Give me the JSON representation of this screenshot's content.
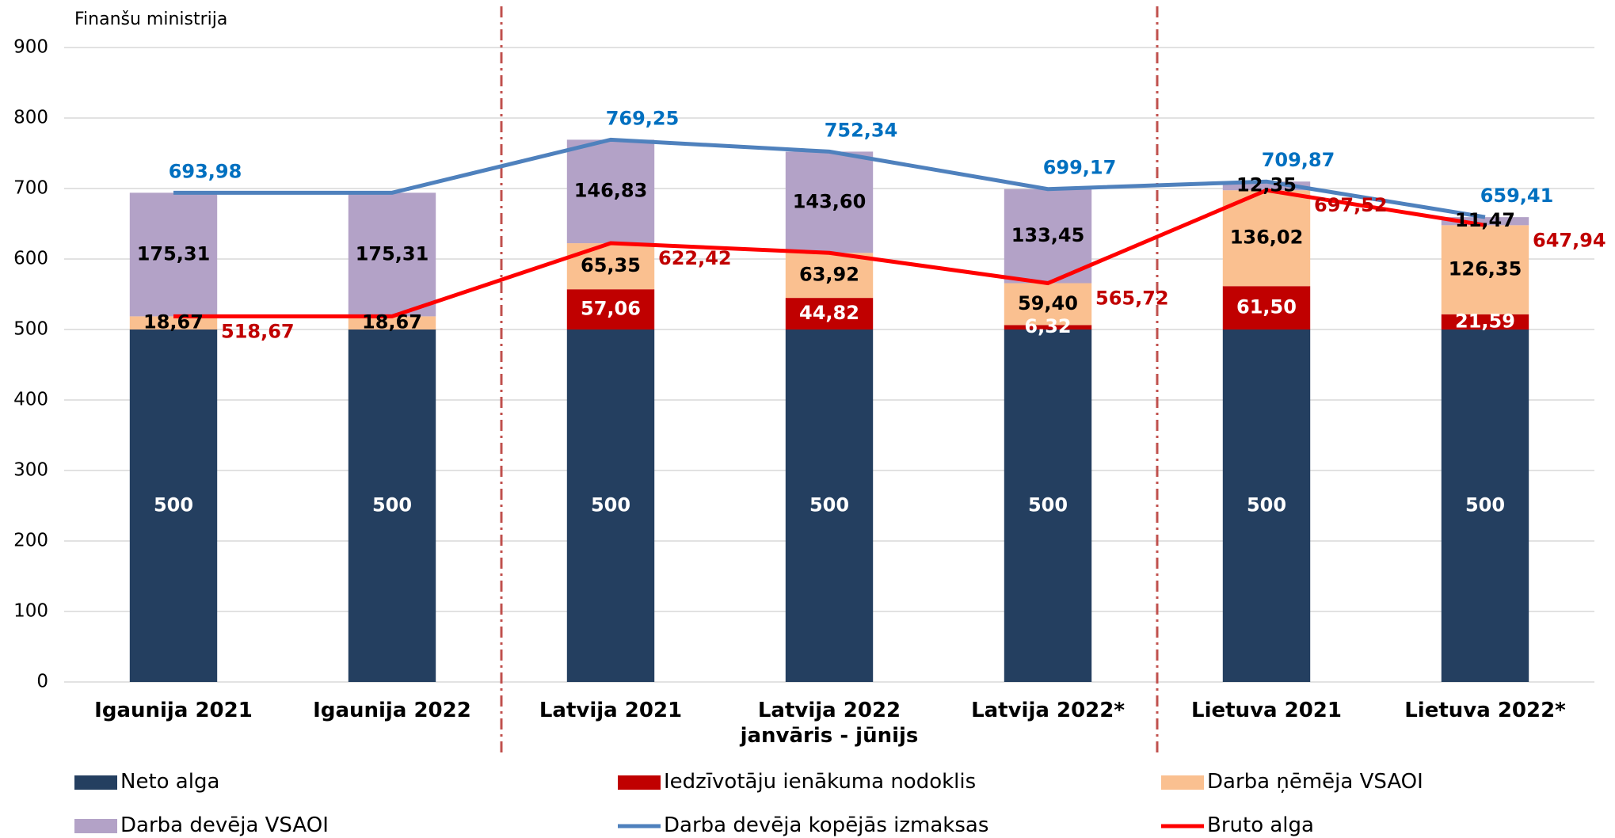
{
  "logo": "Finanšu ministrija",
  "chart_data": {
    "type": "stacked_bar_line",
    "categories": [
      "Igaunija  2021",
      "Igaunija 2022",
      "Latvija 2021",
      "Latvija 2022\njanvāris - jūnijs",
      "Latvija 2022*",
      "Lietuva 2021",
      "Lietuva 2022*"
    ],
    "series": [
      {
        "name": "Neto alga",
        "type": "bar",
        "color": "#243f60",
        "label_color": "#ffffff",
        "values": [
          500,
          500,
          500,
          500,
          500,
          500,
          500
        ],
        "value_labels": [
          "500",
          "500",
          "500",
          "500",
          "500",
          "500",
          "500"
        ]
      },
      {
        "name": "Iedzīvotāju ienākuma nodoklis",
        "type": "bar",
        "color": "#c00000",
        "label_color": "#ffffff",
        "values": [
          0,
          0,
          57.06,
          44.82,
          6.32,
          61.5,
          21.59
        ],
        "value_labels": [
          null,
          null,
          "57,06",
          "44,82",
          "6,32",
          "61,50",
          "21,59"
        ]
      },
      {
        "name": "Darba ņēmēja VSAOI",
        "type": "bar",
        "color": "#fac090",
        "label_color": "#000000",
        "values": [
          18.67,
          18.67,
          65.35,
          63.92,
          59.4,
          136.02,
          126.35
        ],
        "value_labels": [
          "18,67",
          "18,67",
          "65,35",
          "63,92",
          "59,40",
          "136,02",
          "126,35"
        ]
      },
      {
        "name": "Darba devēja VSAOI",
        "type": "bar",
        "color": "#b3a2c7",
        "label_color": "#000000",
        "values": [
          175.31,
          175.31,
          146.83,
          143.6,
          133.45,
          12.35,
          11.47
        ],
        "value_labels": [
          "175,31",
          "175,31",
          "146,83",
          "143,60",
          "133,45",
          "12,35",
          "11,47"
        ]
      },
      {
        "name": "Darba devēja kopējās izmaksas",
        "type": "line",
        "color": "#4f81bd",
        "label_color": "#0070c0",
        "values": [
          693.98,
          693.98,
          769.25,
          752.34,
          699.17,
          709.87,
          659.41
        ],
        "value_labels": [
          "693,98",
          null,
          "769,25",
          "752,34",
          "699,17",
          "709,87",
          "659,41"
        ]
      },
      {
        "name": "Bruto alga",
        "type": "line",
        "color": "#ff0000",
        "label_color": "#c00000",
        "values": [
          518.67,
          518.67,
          622.42,
          608.74,
          565.72,
          697.52,
          647.94
        ],
        "value_labels": [
          "518,67",
          null,
          "622,42",
          null,
          "565,72",
          "697,52",
          "647,94"
        ]
      }
    ],
    "ylim": [
      0,
      900
    ],
    "yticks": [
      0,
      100,
      200,
      300,
      400,
      500,
      600,
      700,
      800,
      900
    ],
    "grid": true,
    "legend": "bottom"
  }
}
